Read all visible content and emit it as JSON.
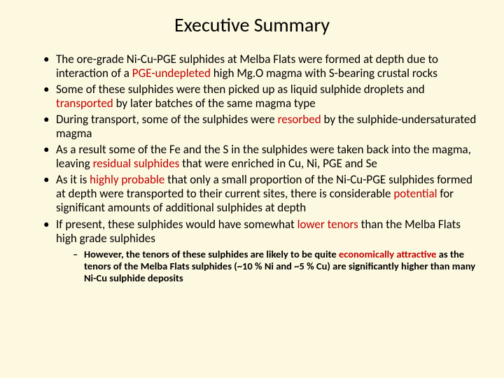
{
  "title": "Executive Summary",
  "colors": {
    "background": "#fdf8e0",
    "text": "#000000",
    "highlight": "#c00000"
  },
  "bullets": [
    {
      "segments": [
        {
          "text": "The ore-grade Ni-Cu-PGE sulphides at Melba Flats were formed at depth due to interaction of a ",
          "hl": false
        },
        {
          "text": "PGE-undepleted",
          "hl": true
        },
        {
          "text": " high Mg.O magma with S-bearing crustal rocks",
          "hl": false
        }
      ]
    },
    {
      "segments": [
        {
          "text": "Some of these sulphides were then picked up as liquid sulphide droplets and ",
          "hl": false
        },
        {
          "text": "transported",
          "hl": true
        },
        {
          "text": " by later batches of the same magma type",
          "hl": false
        }
      ]
    },
    {
      "segments": [
        {
          "text": "During transport, some of the sulphides were ",
          "hl": false
        },
        {
          "text": "resorbed",
          "hl": true
        },
        {
          "text": " by the sulphide-undersaturated magma",
          "hl": false
        }
      ]
    },
    {
      "segments": [
        {
          "text": "As a result some of the Fe and the S in the sulphides were taken back into the magma, leaving ",
          "hl": false
        },
        {
          "text": "residual sulphides",
          "hl": true
        },
        {
          "text": " that were enriched in Cu, Ni, PGE and Se",
          "hl": false
        }
      ]
    },
    {
      "segments": [
        {
          "text": "As it is ",
          "hl": false
        },
        {
          "text": "highly probable",
          "hl": true
        },
        {
          "text": " that only a small proportion of the Ni-Cu-PGE sulphides formed at depth were transported to their current sites, there is considerable ",
          "hl": false
        },
        {
          "text": "potential",
          "hl": true
        },
        {
          "text": " for significant amounts of additional sulphides at depth",
          "hl": false
        }
      ]
    },
    {
      "segments": [
        {
          "text": "If present, these sulphides would have somewhat ",
          "hl": false
        },
        {
          "text": "lower tenors",
          "hl": true
        },
        {
          "text": " than the Melba Flats high grade sulphides",
          "hl": false
        }
      ],
      "sub": [
        {
          "segments": [
            {
              "text": "However, the tenors of these sulphides are likely to be quite ",
              "hl": false
            },
            {
              "text": "economically attractive",
              "hl": true
            },
            {
              "text": " as the tenors of the Melba Flats sulphides (~10 % Ni and ~5 % Cu) are significantly higher than many Ni-Cu sulphide deposits",
              "hl": false
            }
          ]
        }
      ]
    }
  ]
}
